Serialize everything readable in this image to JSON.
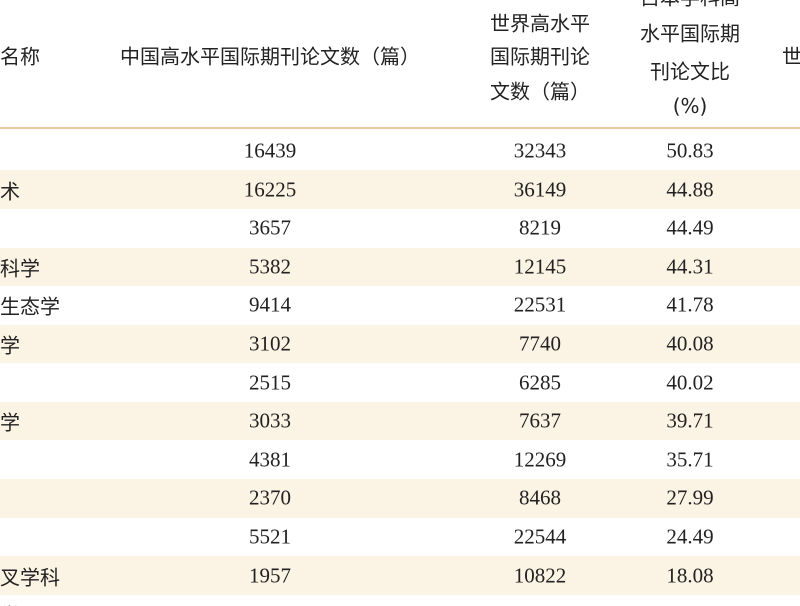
{
  "table": {
    "header": [
      [
        "名称"
      ],
      [
        "中国高水平国际期刊论文数（篇）"
      ],
      [
        "世界高水平",
        "国际期刊论",
        "文数（篇）"
      ],
      [
        "占本学科高",
        "水平国际期",
        "刊论文比",
        "(%)"
      ],
      [
        "世"
      ]
    ],
    "rows": [
      [
        null,
        "16439",
        "32343",
        "50.83"
      ],
      [
        "术",
        "16225",
        "36149",
        "44.88"
      ],
      [
        null,
        "3657",
        "8219",
        "44.49"
      ],
      [
        "科学",
        "5382",
        "12145",
        "44.31"
      ],
      [
        "生态学",
        "9414",
        "22531",
        "41.78"
      ],
      [
        "学",
        "3102",
        "7740",
        "40.08"
      ],
      [
        null,
        "2515",
        "6285",
        "40.02"
      ],
      [
        "学",
        "3033",
        "7637",
        "39.71"
      ],
      [
        null,
        "4381",
        "12269",
        "35.71"
      ],
      [
        null,
        "2370",
        "8468",
        "27.99"
      ],
      [
        null,
        "5521",
        "22544",
        "24.49"
      ],
      [
        "叉学科",
        "1957",
        "10822",
        "18.08"
      ],
      [
        "学"
      ]
    ]
  }
}
